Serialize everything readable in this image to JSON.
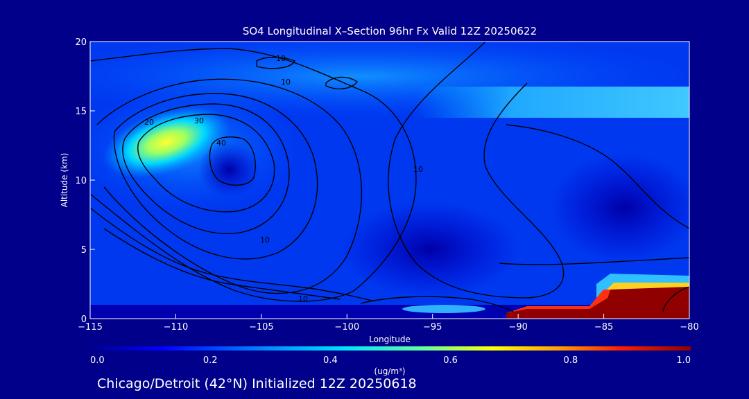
{
  "chart_data": {
    "type": "heatmap",
    "title": "SO4 Longitudinal X–Section 96hr  Fx Valid 12Z 20250622",
    "xlabel": "Longitude",
    "ylabel": "Altitude (km)",
    "xlim": [
      -115,
      -80
    ],
    "ylim": [
      0,
      20
    ],
    "xticks": [
      -115,
      -110,
      -105,
      -100,
      -95,
      -90,
      -85,
      -80
    ],
    "yticks": [
      0,
      5,
      10,
      15,
      20
    ],
    "colorbar": {
      "label": "(ug/m³)",
      "range": [
        0.0,
        1.0
      ],
      "ticks": [
        "0.0",
        "0.2",
        "0.4",
        "0.6",
        "0.8",
        "1.0"
      ],
      "colors": [
        "#000090",
        "#0000ff",
        "#0090ff",
        "#00e0ff",
        "#60ffa0",
        "#ffff00",
        "#ffa000",
        "#ff2000",
        "#900000"
      ]
    },
    "contour_labels": [
      "10",
      "20",
      "30",
      "40",
      "10",
      "10",
      "10",
      "10"
    ],
    "features": [
      {
        "name": "upper-plume",
        "lon": -110.5,
        "alt": 12.5,
        "value": 0.6
      },
      {
        "name": "upper-band",
        "lon_range": [
          -88,
          -80
        ],
        "alt": 15.5,
        "value": 0.35
      },
      {
        "name": "surface-high",
        "lon_range": [
          -85,
          -80
        ],
        "alt_range": [
          0,
          2
        ],
        "value": 1.0
      }
    ],
    "footer": "Chicago/Detroit (42°N) Initialized 12Z 20250618"
  }
}
